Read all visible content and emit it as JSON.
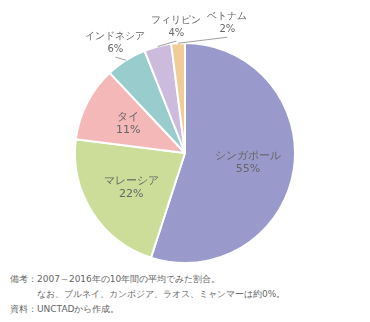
{
  "chart_data": {
    "type": "pie",
    "categories": [
      "シンガポール",
      "マレーシア",
      "タイ",
      "インドネシア",
      "フィリピン",
      "ベトナム"
    ],
    "values": [
      55,
      22,
      11,
      6,
      4,
      2
    ],
    "value_labels": [
      "55%",
      "22%",
      "11%",
      "6%",
      "4%",
      "2%"
    ],
    "data_labels": true,
    "colors": [
      "#9999cc",
      "#ccdd99",
      "#f4b8b8",
      "#99cccc",
      "#ccbbdd",
      "#f0cc99"
    ],
    "annotations": [
      "備考：2007～2016年の10年間の平均でみた割合。",
      "　　　なお、ブルネイ、カンボジア、ラオス、ミャンマーは約0%。",
      "資料：UNCTADから作成。"
    ]
  }
}
